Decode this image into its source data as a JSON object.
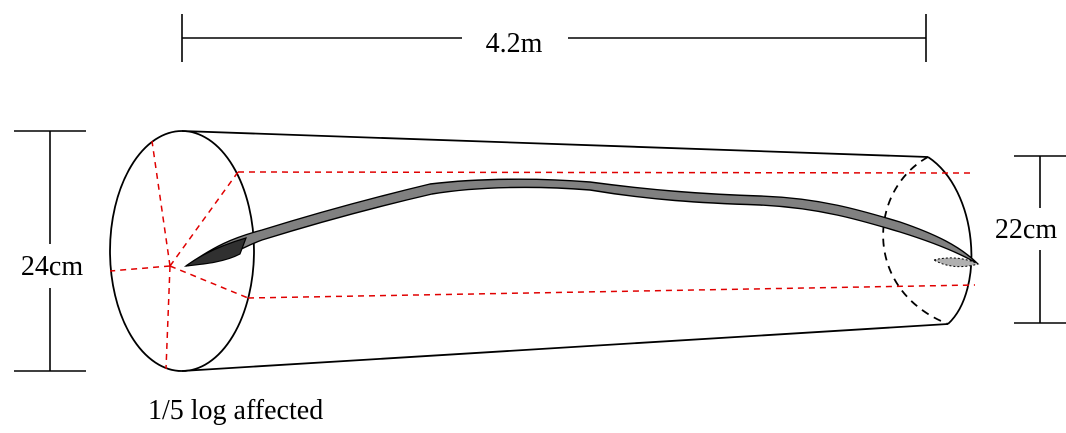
{
  "labels": {
    "length": "4.2m",
    "large_diameter": "24cm",
    "small_diameter": "22cm",
    "caption": "1/5 log affected"
  },
  "colors": {
    "outline": "#000000",
    "guide": "#e00000",
    "defect_fill": "#808080",
    "defect_tip": "#303030",
    "background": "#ffffff"
  }
}
